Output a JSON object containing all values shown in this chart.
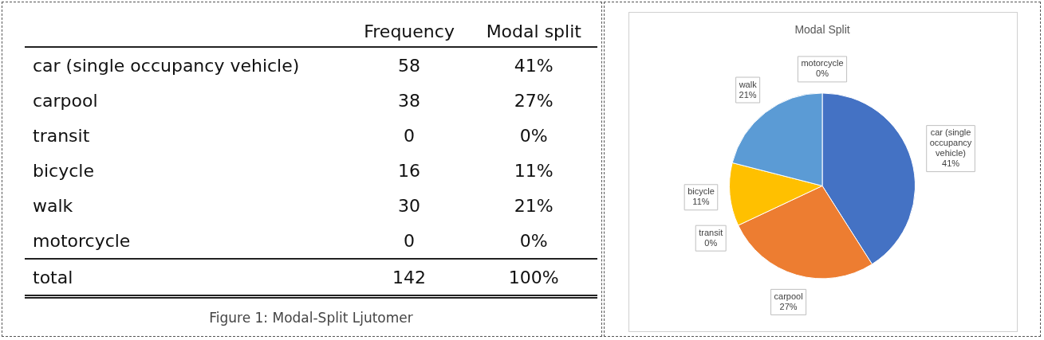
{
  "chart_data": [
    {
      "type": "other",
      "title": "Figure 1: Modal-Split Ljutomer",
      "data_labels": true,
      "categories": [
        "car (single occupancy vehicle)",
        "carpool",
        "transit",
        "bicycle",
        "walk",
        "motorcycle",
        "total"
      ],
      "series": [
        {
          "name": "Frequency",
          "values": [
            58,
            38,
            0,
            16,
            30,
            0,
            142
          ]
        },
        {
          "name": "Modal split",
          "values": [
            41,
            27,
            0,
            11,
            21,
            0,
            100
          ],
          "value_labels": [
            "41%",
            "27%",
            "0%",
            "11%",
            "21%",
            "0%",
            "100%"
          ]
        }
      ]
    },
    {
      "type": "pie",
      "title": "Modal Split",
      "categories": [
        "car (single occupancy vehicle)",
        "carpool",
        "transit",
        "bicycle",
        "walk",
        "motorcycle"
      ],
      "values": [
        41,
        27,
        0,
        11,
        21,
        0
      ],
      "colors": [
        "#4472c4",
        "#ed7d31",
        "#a5a5a5",
        "#ffc000",
        "#5b9bd5",
        "#70ad47"
      ],
      "value_labels": [
        "41%",
        "27%",
        "0%",
        "11%",
        "21%",
        "0%"
      ]
    }
  ]
}
